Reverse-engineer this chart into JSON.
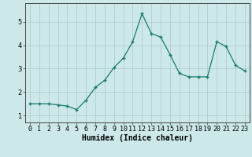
{
  "x": [
    0,
    1,
    2,
    3,
    4,
    5,
    6,
    7,
    8,
    9,
    10,
    11,
    12,
    13,
    14,
    15,
    16,
    17,
    18,
    19,
    20,
    21,
    22,
    23
  ],
  "y": [
    1.5,
    1.5,
    1.5,
    1.45,
    1.4,
    1.25,
    1.65,
    2.2,
    2.5,
    3.05,
    3.45,
    4.15,
    5.35,
    4.5,
    4.35,
    3.6,
    2.8,
    2.65,
    2.65,
    2.65,
    4.15,
    3.95,
    3.15,
    2.9
  ],
  "line_color": "#1a7a6e",
  "marker": "+",
  "marker_size": 3.5,
  "marker_lw": 1.0,
  "bg_color": "#cce8e8",
  "grid_color": "#aec8c8",
  "xlabel": "Humidex (Indice chaleur)",
  "xlim": [
    -0.5,
    23.5
  ],
  "ylim": [
    0.7,
    5.8
  ],
  "yticks": [
    1,
    2,
    3,
    4,
    5
  ],
  "xticks": [
    0,
    1,
    2,
    3,
    4,
    5,
    6,
    7,
    8,
    9,
    10,
    11,
    12,
    13,
    14,
    15,
    16,
    17,
    18,
    19,
    20,
    21,
    22,
    23
  ],
  "xlabel_fontsize": 7,
  "tick_fontsize": 6
}
